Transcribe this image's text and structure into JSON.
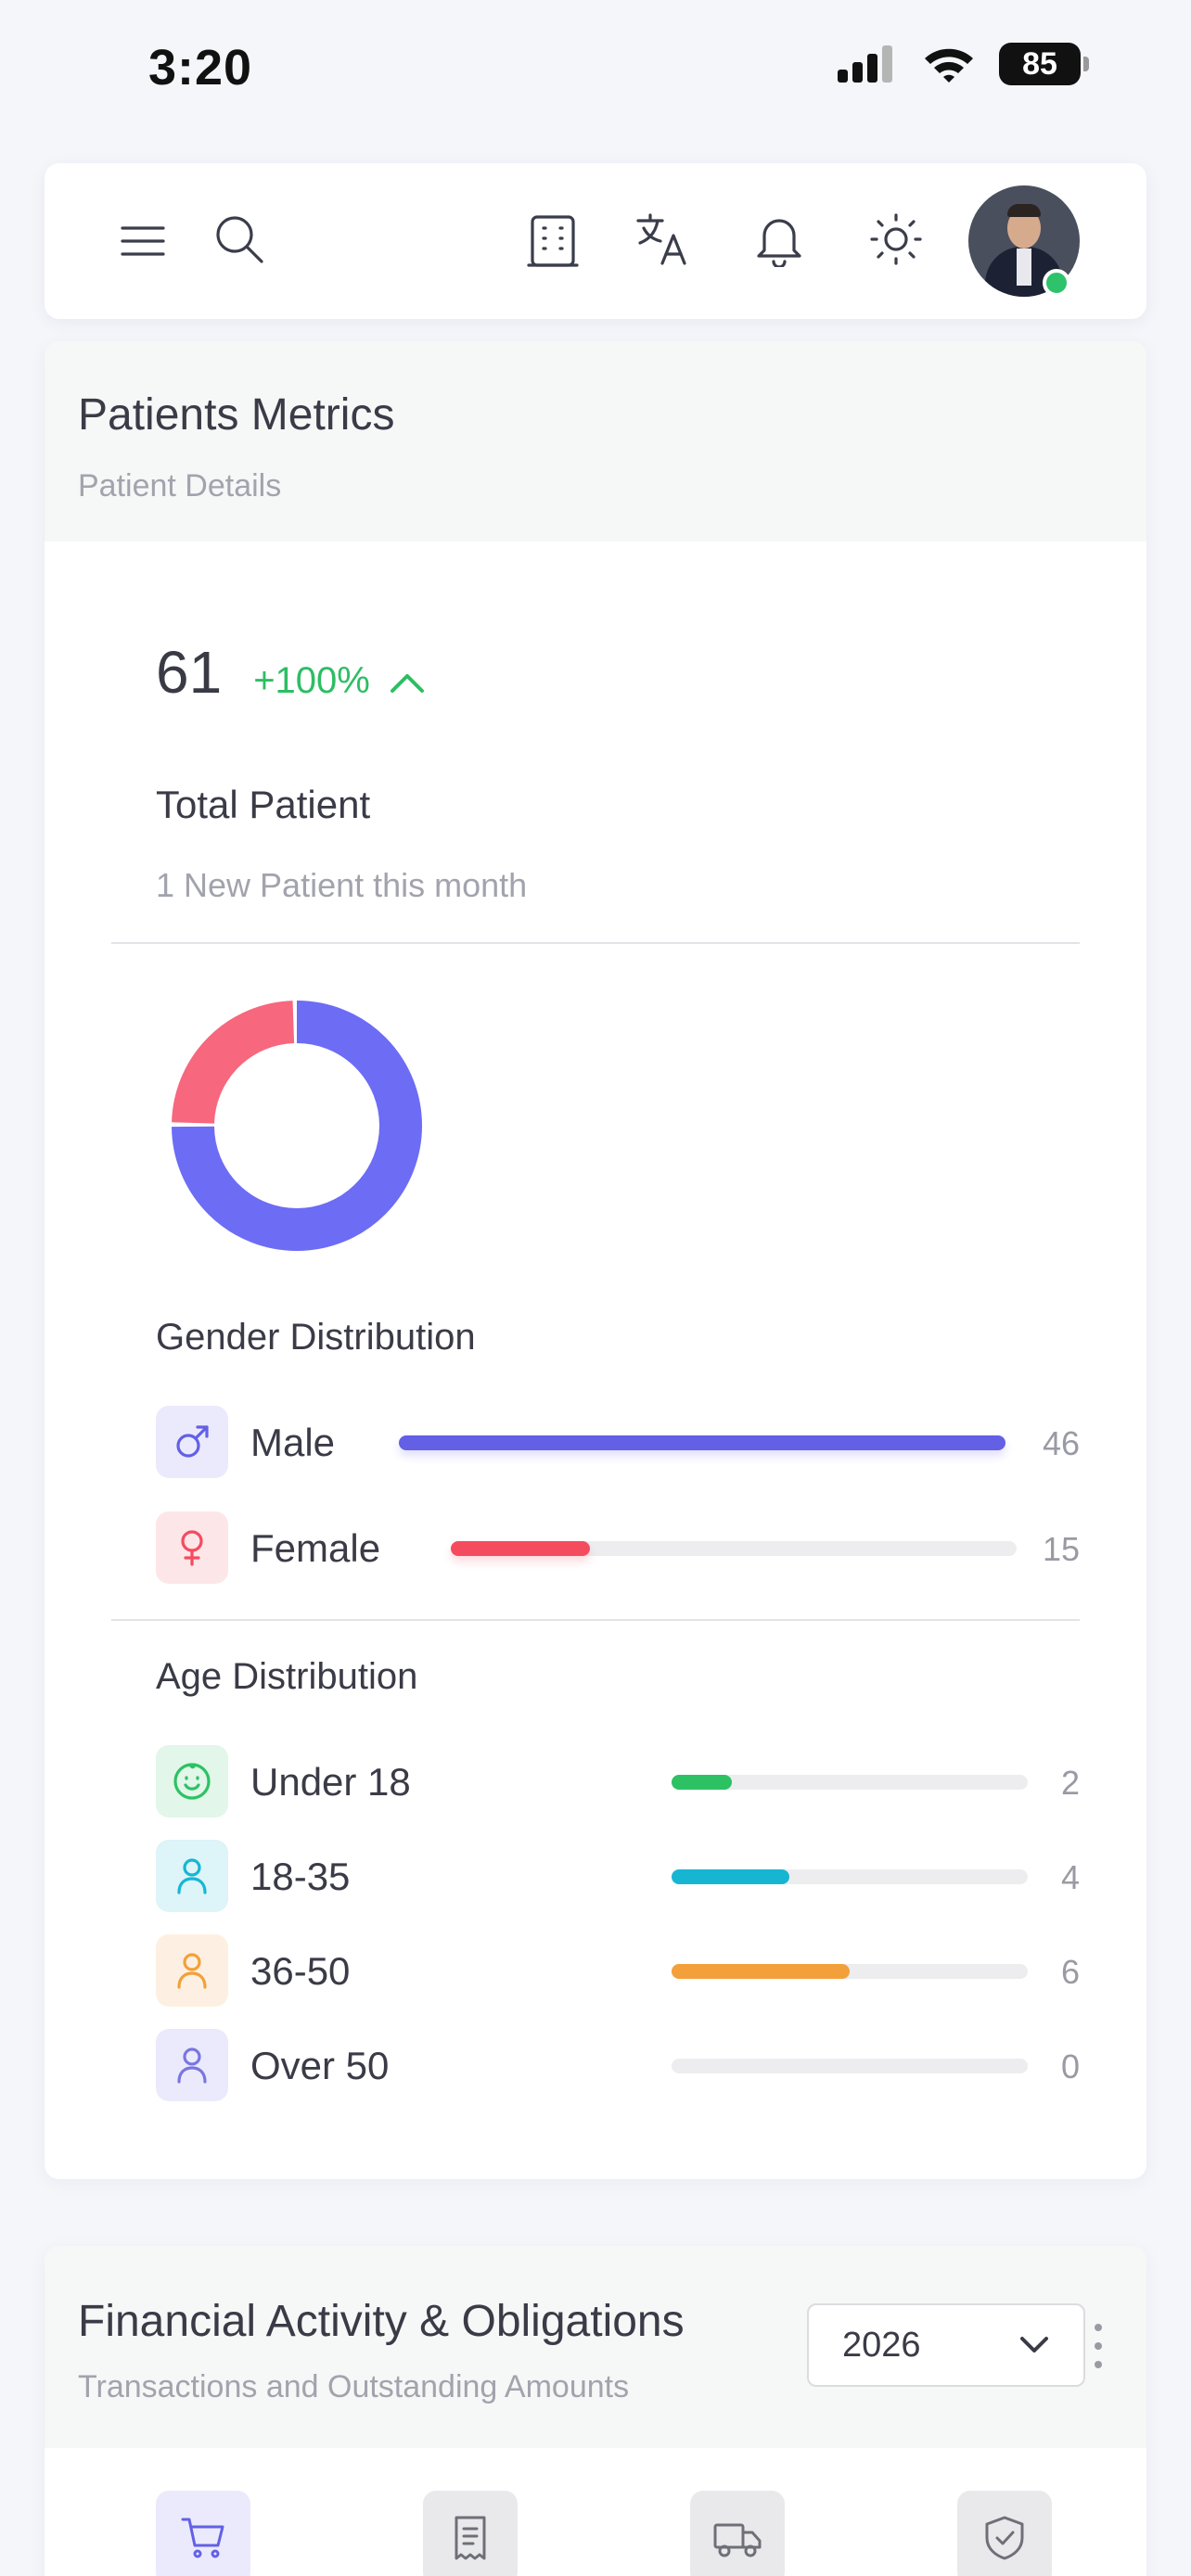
{
  "status_bar": {
    "time": "3:20",
    "battery": "85"
  },
  "topbar": {
    "icons": [
      "menu-icon",
      "search-icon",
      "building-icon",
      "translate-icon",
      "bell-icon",
      "sun-icon"
    ],
    "avatar_status": "online"
  },
  "patients_card": {
    "title": "Patients Metrics",
    "subtitle": "Patient Details",
    "total": "61",
    "change": "+100%",
    "total_label": "Total Patient",
    "new_note": "1 New Patient this month",
    "donut": {
      "male": 46,
      "female": 15,
      "male_color": "#6c6cf5",
      "female_color": "#f7677d"
    },
    "gender": {
      "title": "Gender Distribution",
      "items": [
        {
          "label": "Male",
          "value": "46",
          "fraction": 0.754,
          "color": "#6360e6",
          "icon": "male-icon"
        },
        {
          "label": "Female",
          "value": "15",
          "fraction": 0.246,
          "color": "#f54b5e",
          "icon": "female-icon"
        }
      ]
    },
    "age": {
      "title": "Age Distribution",
      "items": [
        {
          "label": "Under 18",
          "value": "2",
          "fraction": 0.17,
          "color": "#2cc263",
          "icon": "baby-icon"
        },
        {
          "label": "18-35",
          "value": "4",
          "fraction": 0.33,
          "color": "#16b6d3",
          "icon": "person-icon"
        },
        {
          "label": "36-50",
          "value": "6",
          "fraction": 0.5,
          "color": "#f3a03a",
          "icon": "person-icon"
        },
        {
          "label": "Over 50",
          "value": "0",
          "fraction": 0,
          "color": "#8a86e8",
          "icon": "person-icon"
        }
      ]
    }
  },
  "financial_card": {
    "title": "Financial Activity & Obligations",
    "subtitle": "Transactions and Outstanding Amounts",
    "year": "2026",
    "tabs": [
      "cart-icon",
      "receipt-icon",
      "truck-icon",
      "shield-check-icon"
    ]
  }
}
